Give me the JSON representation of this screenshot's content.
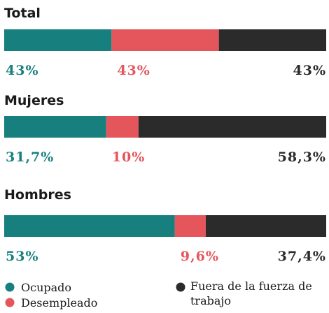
{
  "chart_data": {
    "type": "bar",
    "stacked": true,
    "orientation": "horizontal",
    "categories": [
      "Total",
      "Mujeres",
      "Hombres"
    ],
    "series": [
      {
        "name": "Ocupado",
        "color": "#17807e",
        "values": [
          43,
          31.7,
          53
        ],
        "value_labels": [
          "43%",
          "31,7%",
          "53%"
        ]
      },
      {
        "name": "Desempleado",
        "color": "#e4565c",
        "values": [
          43,
          10,
          9.6
        ],
        "value_labels": [
          "43%",
          "10%",
          "9,6%"
        ]
      },
      {
        "name": "Fuera de la fuerza de trabajo",
        "color": "#2b2b2b",
        "values": [
          43,
          58.3,
          37.4
        ],
        "value_labels": [
          "43%",
          "58,3%",
          "37,4%"
        ]
      }
    ]
  }
}
